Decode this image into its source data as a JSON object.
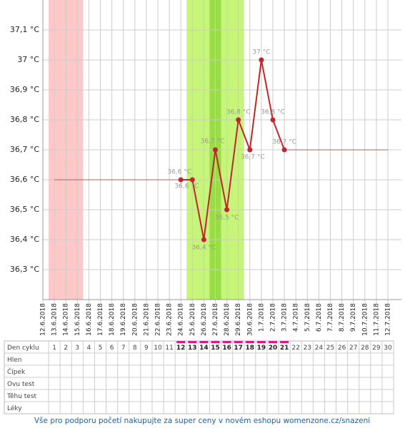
{
  "chart_data": {
    "type": "line",
    "categories": [
      "12.6.2018",
      "13.6.2018",
      "14.6.2018",
      "15.6.2018",
      "16.6.2018",
      "17.6.2018",
      "18.6.2018",
      "19.6.2018",
      "20.6.2018",
      "21.6.2018",
      "22.6.2018",
      "23.6.2018",
      "24.6.2018",
      "25.6.2018",
      "26.6.2018",
      "27.6.2018",
      "28.6.2018",
      "29.6.2018",
      "30.6.2018",
      "1.7.2018",
      "2.7.2018",
      "3.7.2018",
      "4.7.2018",
      "5.7.2018",
      "6.7.2018",
      "7.7.2018",
      "8.7.2018",
      "9.7.2018",
      "10.7.2018",
      "11.7.2018",
      "12.7.2018"
    ],
    "series": [
      {
        "color": "#c0272d",
        "values": [
          null,
          null,
          null,
          null,
          null,
          null,
          null,
          null,
          null,
          null,
          null,
          null,
          36.6,
          36.6,
          36.4,
          36.7,
          36.5,
          36.8,
          36.7,
          37.0,
          36.8,
          36.7,
          null,
          null,
          null,
          null,
          null,
          null,
          null,
          null,
          null
        ],
        "value_labels": [
          null,
          null,
          null,
          null,
          null,
          null,
          null,
          null,
          null,
          null,
          null,
          null,
          "36,6 °C",
          "36,6 °C",
          "36,4 °C",
          "36,7 °C",
          "36,5 °C",
          "36,8 °C",
          "36,7 °C",
          "37 °C",
          "36,8 °C",
          "36,7 °C",
          null,
          null,
          null,
          null,
          null,
          null,
          null,
          null,
          null
        ]
      },
      {
        "color": "#b06060",
        "values": [
          null,
          36.6,
          36.6,
          36.6,
          36.6,
          36.6,
          36.6,
          36.6,
          36.6,
          36.6,
          36.6,
          36.6,
          36.6,
          null,
          null,
          null,
          null,
          null,
          null,
          null,
          null,
          36.7,
          36.7,
          36.7,
          36.7,
          36.7,
          36.7,
          36.7,
          36.7,
          36.7,
          36.7
        ]
      }
    ],
    "ylim": [
      36.2,
      37.2
    ],
    "yticks": [
      {
        "value": 36.3,
        "label": "36,3 °C"
      },
      {
        "value": 36.4,
        "label": "36,4 °C"
      },
      {
        "value": 36.5,
        "label": "36,5 °C"
      },
      {
        "value": 36.6,
        "label": "36,6 °C"
      },
      {
        "value": 36.7,
        "label": "36,7 °C"
      },
      {
        "value": 36.8,
        "label": "36,8 °C"
      },
      {
        "value": 36.9,
        "label": "36,9 °C"
      },
      {
        "value": 37.0,
        "label": "37 °C"
      },
      {
        "value": 37.1,
        "label": "37,1 °C"
      }
    ],
    "grid": true,
    "bands": [
      {
        "start": "13.6.2018",
        "end": "15.6.2018",
        "color": "#ffc8c8"
      },
      {
        "start": "25.6.2018",
        "end": "29.6.2018",
        "color": "#c6f57a"
      },
      {
        "start": "27.6.2018",
        "end": "27.6.2018",
        "color": "#98dd45"
      }
    ]
  },
  "table": {
    "rows": [
      "Den cyklu",
      "Hlen",
      "Čípek",
      "Ovu test",
      "Těhu test",
      "Léky"
    ],
    "days": [
      1,
      2,
      3,
      4,
      5,
      6,
      7,
      8,
      9,
      10,
      11,
      12,
      13,
      14,
      15,
      16,
      17,
      18,
      19,
      20,
      21,
      22,
      23,
      24,
      25,
      26,
      27,
      28,
      29,
      30
    ],
    "marked": [
      false,
      false,
      false,
      false,
      false,
      false,
      false,
      false,
      false,
      false,
      false,
      true,
      true,
      true,
      true,
      true,
      true,
      true,
      true,
      true,
      true,
      false,
      false,
      false,
      false,
      false,
      false,
      false,
      false,
      false
    ],
    "marked_color": "#e0168c"
  },
  "footer": "Vše pro podporu početí nakupujte za super ceny v novém eshopu womenzone.cz/snazeni"
}
